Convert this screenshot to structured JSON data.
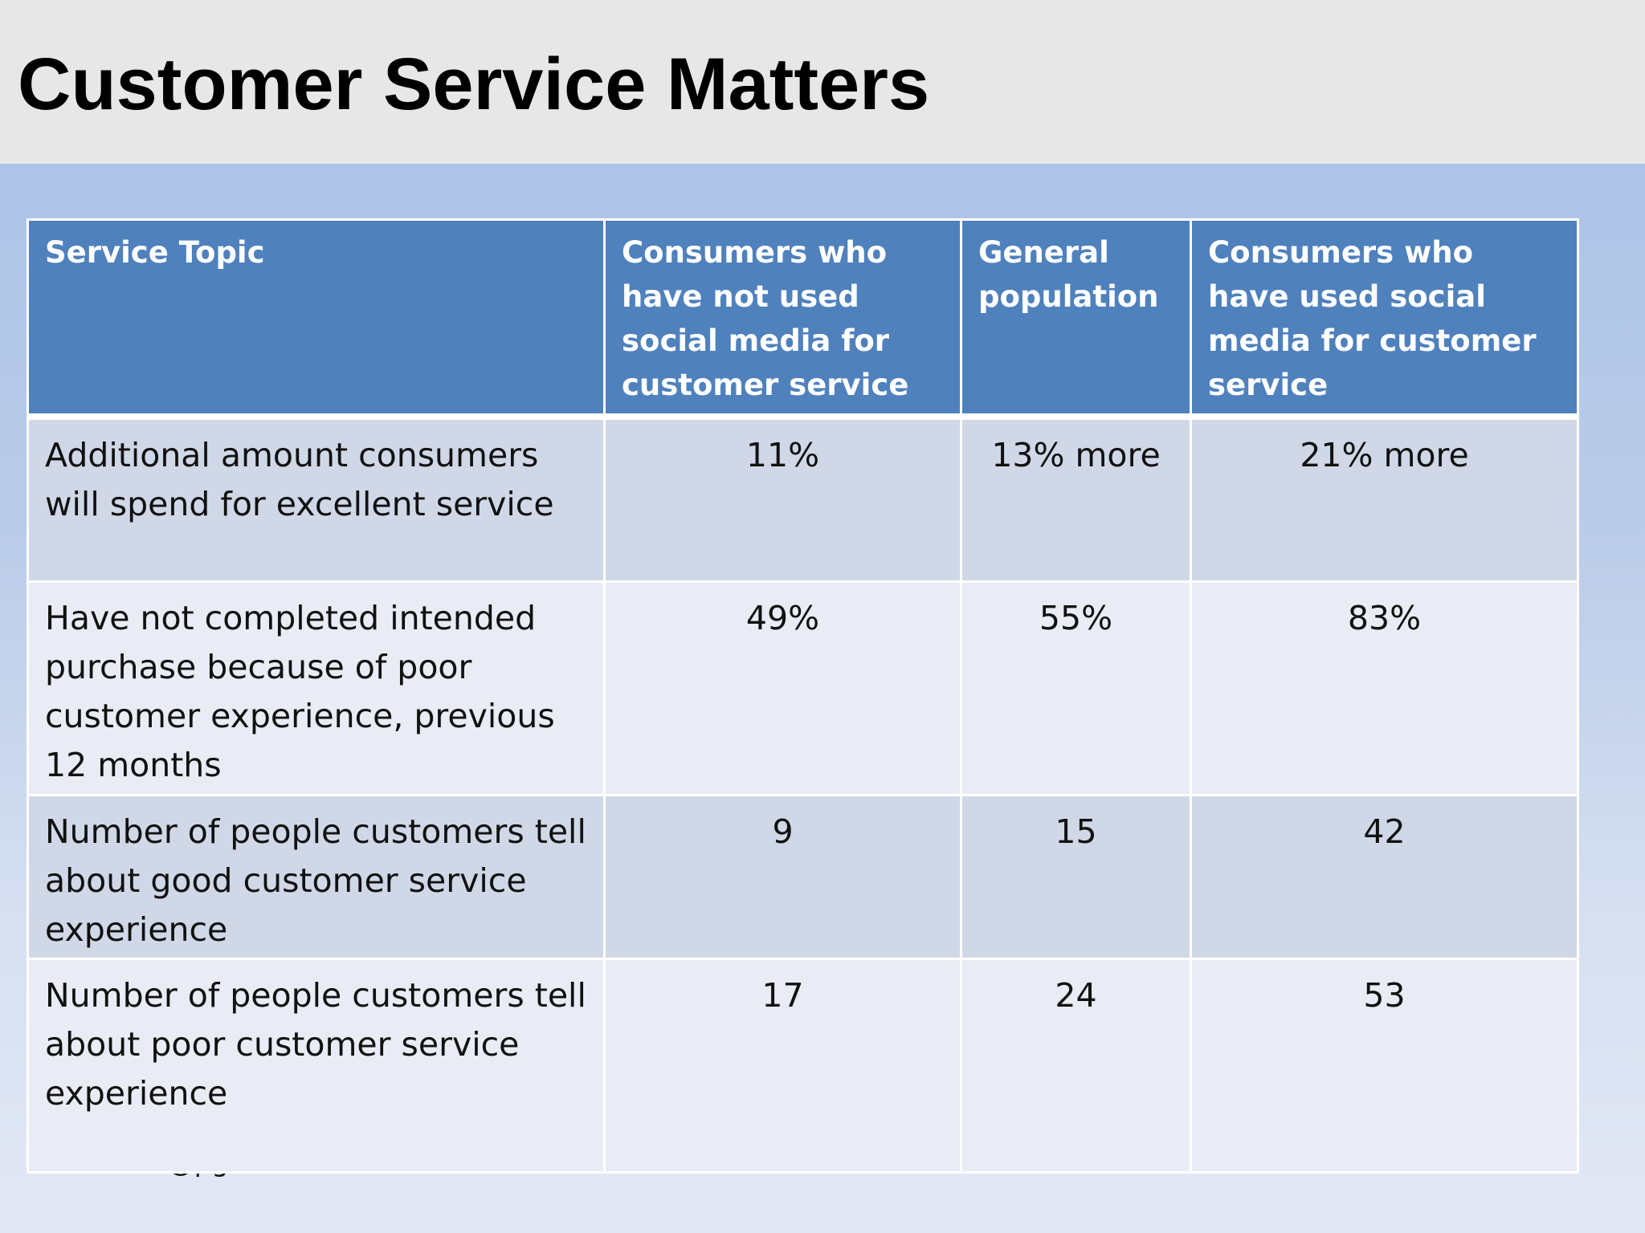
{
  "slide": {
    "title": "Customer Service Matters",
    "footer_note": "Twitter: @pgillin"
  },
  "table": {
    "headers": [
      "Service Topic",
      "Consumers who have not used social media for customer service",
      "General population",
      "Consumers who have used social media for customer service"
    ],
    "rows": [
      {
        "topic": "Additional amount consumers will spend for excellent service",
        "not_used_social": "11%",
        "general_population": "13% more",
        "used_social": "21% more"
      },
      {
        "topic": "Have not completed intended purchase because of poor customer experience, previous 12 months",
        "not_used_social": "49%",
        "general_population": "55%",
        "used_social": "83%"
      },
      {
        "topic": "Number of people customers tell about good customer service experience",
        "not_used_social": "9",
        "general_population": "15",
        "used_social": "42"
      },
      {
        "topic": "Number of people customers tell about poor customer service experience",
        "not_used_social": "17",
        "general_population": "24",
        "used_social": "53"
      }
    ]
  },
  "colors": {
    "header_fill": "#4f81bd",
    "row_band_dark": "#d0d8e8",
    "row_band_light": "#e9ecf4",
    "title_bar": "#e7e7e8"
  }
}
